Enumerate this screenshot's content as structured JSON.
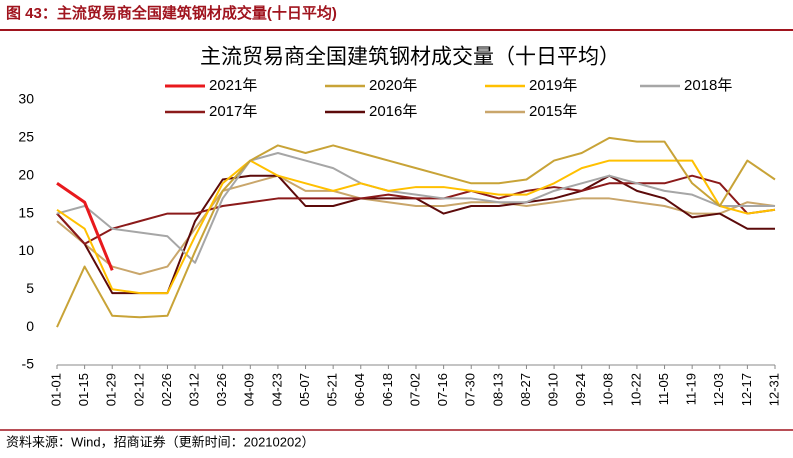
{
  "header": "图 43：主流贸易商全国建筑钢材成交量(十日平均)",
  "source": "资料来源：Wind，招商证券（更新时间：20210202）",
  "chart_data": {
    "type": "line",
    "title": "主流贸易商全国建筑钢材成交量（十日平均）",
    "categories": [
      "01-01",
      "01-15",
      "01-29",
      "02-12",
      "02-26",
      "03-12",
      "03-26",
      "04-09",
      "04-23",
      "05-07",
      "05-21",
      "06-04",
      "06-18",
      "07-02",
      "07-16",
      "07-30",
      "08-13",
      "08-27",
      "09-10",
      "09-24",
      "10-08",
      "10-22",
      "11-05",
      "11-19",
      "12-03",
      "12-17",
      "12-31"
    ],
    "ylim": [
      -5,
      30
    ],
    "yticks": [
      -5,
      0,
      5,
      10,
      15,
      20,
      25,
      30
    ],
    "series": [
      {
        "name": "2021年",
        "color": "#e8191d",
        "values": [
          19,
          16.5,
          7.5,
          null,
          null,
          null,
          null,
          null,
          null,
          null,
          null,
          null,
          null,
          null,
          null,
          null,
          null,
          null,
          null,
          null,
          null,
          null,
          null,
          null,
          null,
          null,
          null
        ]
      },
      {
        "name": "2020年",
        "color": "#c8a337",
        "values": [
          0,
          8,
          1.5,
          1.3,
          1.5,
          10,
          18,
          22,
          24,
          23,
          24,
          23,
          22,
          21,
          20,
          19,
          19,
          19.5,
          22,
          23,
          25,
          24.5,
          24.5,
          19,
          16,
          22,
          19.5
        ]
      },
      {
        "name": "2019年",
        "color": "#ffc000",
        "values": [
          15.5,
          13,
          5,
          4.5,
          4.5,
          12,
          19,
          22,
          20,
          19,
          18,
          19,
          18,
          18.5,
          18.5,
          18,
          17.5,
          17.5,
          19,
          21,
          22,
          22,
          22,
          22,
          16,
          15,
          15.5
        ]
      },
      {
        "name": "2018年",
        "color": "#a6a6a6",
        "values": [
          15,
          16,
          13,
          12.5,
          12,
          8.5,
          17,
          22,
          23,
          22,
          21,
          19,
          18,
          17.5,
          17,
          17,
          16.5,
          16.5,
          18,
          19,
          20,
          19,
          18,
          17.5,
          16,
          16,
          16
        ]
      },
      {
        "name": "2017年",
        "color": "#8b1a1a",
        "values": [
          15,
          11,
          13,
          14,
          15,
          15,
          16,
          16.5,
          17,
          17,
          17,
          17,
          17.5,
          17,
          17,
          18,
          17,
          18,
          18.5,
          18,
          19,
          19,
          19,
          20,
          19,
          15,
          15.5
        ]
      },
      {
        "name": "2016年",
        "color": "#5c0a0a",
        "values": [
          15,
          11,
          4.5,
          4.5,
          4.5,
          14,
          19.5,
          20,
          20,
          16,
          16,
          17,
          17,
          17,
          15,
          16,
          16,
          16.5,
          17,
          18,
          20,
          18,
          17,
          14.5,
          15,
          13,
          13
        ]
      },
      {
        "name": "2015年",
        "color": "#c9a66b",
        "values": [
          14,
          11,
          8,
          7,
          8,
          13,
          18,
          19,
          20,
          18,
          18,
          17,
          16.5,
          16,
          16,
          16.5,
          16.5,
          16,
          16.5,
          17,
          17,
          16.5,
          16,
          15,
          15,
          16.5,
          16
        ]
      }
    ]
  }
}
